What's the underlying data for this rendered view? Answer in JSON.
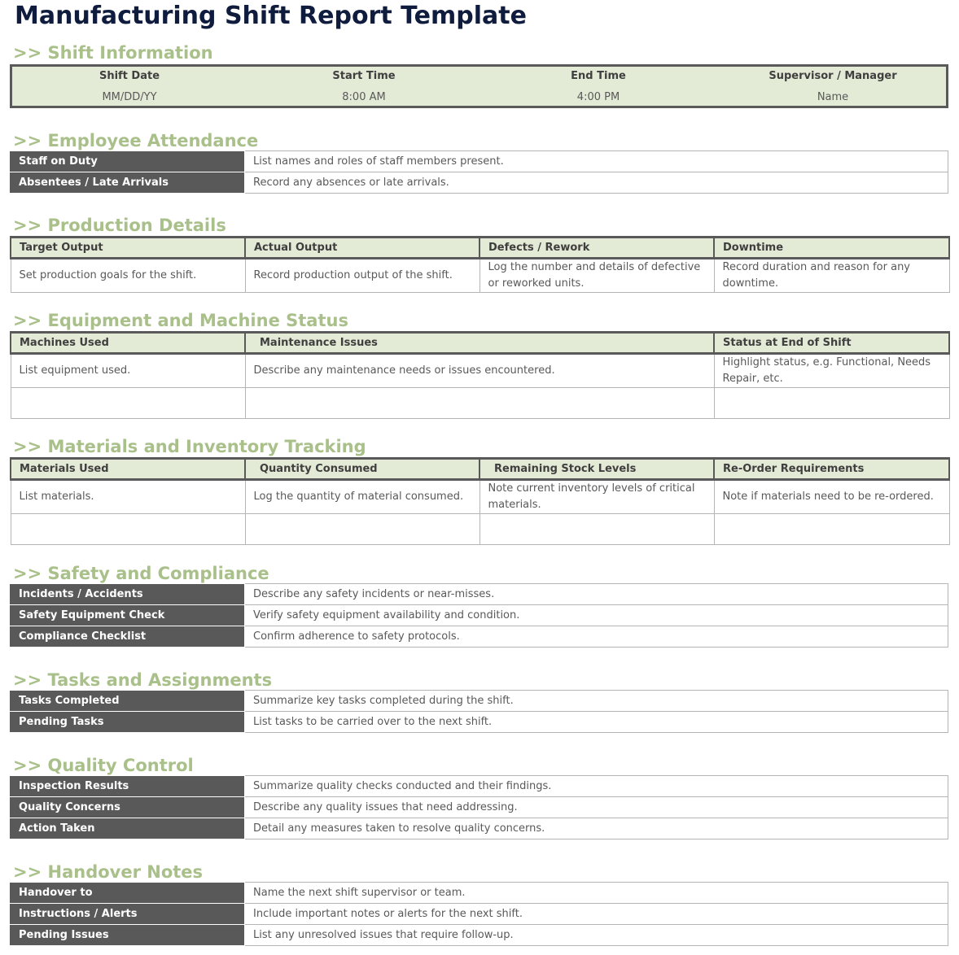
{
  "title": "Manufacturing Shift Report Template",
  "shift_info": {
    "heading": ">> Shift Information",
    "columns": [
      {
        "label": "Shift Date",
        "value": "MM/DD/YY"
      },
      {
        "label": "Start Time",
        "value": "8:00 AM"
      },
      {
        "label": "End Time",
        "value": "4:00 PM"
      },
      {
        "label": "Supervisor / Manager",
        "value": "Name"
      }
    ]
  },
  "attendance": {
    "heading": ">> Employee Attendance",
    "rows": [
      {
        "label": "Staff on Duty",
        "value": "List names and roles of staff members present."
      },
      {
        "label": "Absentees / Late Arrivals",
        "value": "Record any absences or late arrivals."
      }
    ]
  },
  "production": {
    "heading": ">> Production Details",
    "headers": [
      "Target Output",
      "Actual Output",
      "Defects / Rework",
      "Downtime"
    ],
    "rows": [
      [
        "Set production goals for the shift.",
        "Record production output of the shift.",
        "Log the number and details of defective or reworked units.",
        "Record duration and reason for any downtime."
      ]
    ]
  },
  "equipment": {
    "heading": ">> Equipment and Machine Status",
    "headers": [
      "Machines Used",
      "Maintenance Issues",
      "Status at End of Shift"
    ],
    "rows": [
      [
        "List equipment used.",
        "Describe any maintenance needs or issues encountered.",
        "Highlight status, e.g. Functional, Needs Repair, etc."
      ],
      [
        "",
        "",
        ""
      ]
    ]
  },
  "materials": {
    "heading": ">> Materials and Inventory Tracking",
    "headers": [
      "Materials Used",
      "Quantity Consumed",
      "Remaining Stock Levels",
      "Re-Order Requirements"
    ],
    "rows": [
      [
        "List materials.",
        "Log the quantity of material consumed.",
        "Note current inventory levels of critical materials.",
        "Note if materials need to be re-ordered."
      ],
      [
        "",
        "",
        "",
        ""
      ]
    ]
  },
  "safety": {
    "heading": ">> Safety and Compliance",
    "rows": [
      {
        "label": "Incidents / Accidents",
        "value": "Describe any safety incidents or near-misses."
      },
      {
        "label": "Safety Equipment Check",
        "value": "Verify safety equipment availability and condition."
      },
      {
        "label": "Compliance Checklist",
        "value": "Confirm adherence to safety protocols."
      }
    ]
  },
  "tasks": {
    "heading": ">> Tasks and Assignments",
    "rows": [
      {
        "label": "Tasks Completed",
        "value": "Summarize key tasks completed during the shift."
      },
      {
        "label": "Pending Tasks",
        "value": "List tasks to be carried over to the next shift."
      }
    ]
  },
  "quality": {
    "heading": ">> Quality Control",
    "rows": [
      {
        "label": "Inspection Results",
        "value": "Summarize quality checks conducted and their findings."
      },
      {
        "label": "Quality Concerns",
        "value": "Describe any quality issues that need addressing."
      },
      {
        "label": "Action Taken",
        "value": "Detail any measures taken to resolve quality concerns."
      }
    ]
  },
  "handover": {
    "heading": ">> Handover Notes",
    "rows": [
      {
        "label": "Handover to",
        "value": "Name the next shift supervisor or team."
      },
      {
        "label": "Instructions / Alerts",
        "value": "Include important notes or alerts for the next shift."
      },
      {
        "label": "Pending Issues",
        "value": "List any unresolved issues that require follow-up."
      }
    ]
  }
}
